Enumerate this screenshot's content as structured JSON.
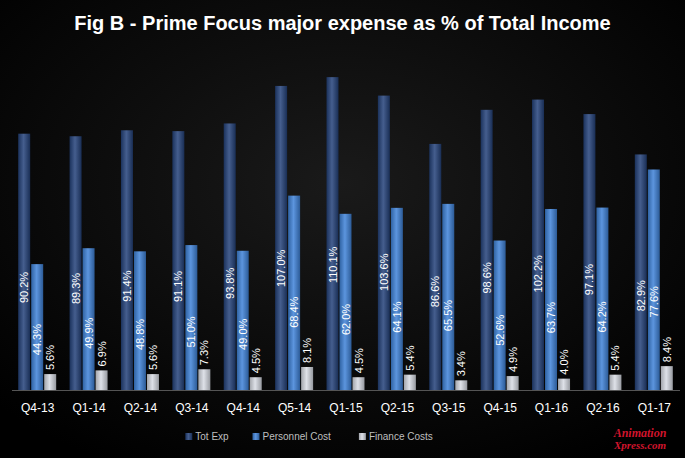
{
  "chart_data": {
    "type": "bar",
    "title": "Fig B - Prime Focus major expense as % of Total Income",
    "categories": [
      "Q4-13",
      "Q1-14",
      "Q2-14",
      "Q3-14",
      "Q4-14",
      "Q5-14",
      "Q1-15",
      "Q2-15",
      "Q3-15",
      "Q4-15",
      "Q1-16",
      "Q2-16",
      "Q1-17"
    ],
    "series": [
      {
        "name": "Tot Exp",
        "color": "#24427a",
        "values": [
          90.2,
          89.3,
          91.4,
          91.1,
          93.8,
          107.0,
          110.1,
          103.6,
          86.6,
          98.6,
          102.2,
          97.1,
          82.9
        ],
        "value_labels": [
          "90.2%",
          "89.3%",
          "91.4%",
          "91.1%",
          "93.8%",
          "107.0%",
          "110.1%",
          "103.6%",
          "86.6%",
          "98.6%",
          "102.2%",
          "97.1%",
          "82.9%"
        ]
      },
      {
        "name": "Personnel Cost",
        "color": "#3f82d8",
        "values": [
          44.3,
          49.9,
          48.8,
          51.0,
          49.0,
          68.4,
          62.0,
          64.1,
          65.5,
          52.6,
          63.7,
          64.2,
          77.6
        ],
        "value_labels": [
          "44.3%",
          "49.9%",
          "48.8%",
          "51.0%",
          "49.0%",
          "68.4%",
          "62.0%",
          "64.1%",
          "65.5%",
          "52.6%",
          "63.7%",
          "64.2%",
          "77.6%"
        ]
      },
      {
        "name": "Finance Costs",
        "color": "#d8dce4",
        "values": [
          5.6,
          6.9,
          5.6,
          7.3,
          4.5,
          8.1,
          4.5,
          5.4,
          3.4,
          4.9,
          4.0,
          5.4,
          8.4
        ],
        "value_labels": [
          "5.6%",
          "6.9%",
          "5.6%",
          "7.3%",
          "4.5%",
          "8.1%",
          "4.5%",
          "5.4%",
          "3.4%",
          "4.9%",
          "4.0%",
          "5.4%",
          "8.4%"
        ]
      }
    ],
    "ylim": [
      0,
      120
    ],
    "yticks": [],
    "tick_labels": "x",
    "grid": false,
    "legend": "bottom",
    "data_labels": true,
    "annotations": [
      "Animation",
      "Xpress.com"
    ]
  }
}
